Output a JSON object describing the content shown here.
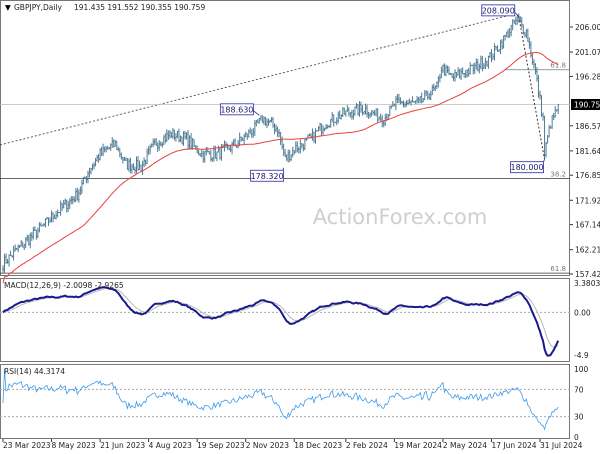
{
  "header": {
    "symbol": "GBPJPY,Daily",
    "ohlc": "191.435 191.552 190.355 190.759"
  },
  "watermark": "ActionForex.com",
  "colors": {
    "bars": "#4f7b95",
    "ma": "#e8423f",
    "macd": "#1a1a8c",
    "signal": "#b8b8b8",
    "rsi": "#3d9cf0",
    "label_box": "#2a2aa0"
  },
  "chart_data": [
    {
      "type": "ohlc",
      "title": "GBPJPY,Daily",
      "ylim": [
        157.425,
        206.0
      ],
      "y_ticks": [
        "206.000",
        "201.070",
        "196.285",
        "186.570",
        "181.640",
        "176.855",
        "171.925",
        "167.140",
        "162.210",
        "157.425"
      ],
      "x_ticks": [
        {
          "label": "23 Mar 2023",
          "date": "2023-03-23"
        },
        {
          "label": "8 May 2023",
          "date": "2023-05-08"
        },
        {
          "label": "21 Jun 2023",
          "date": "2023-06-21"
        },
        {
          "label": "4 Aug 2023",
          "date": "2023-08-04"
        },
        {
          "label": "19 Sep 2023",
          "date": "2023-09-19"
        },
        {
          "label": "2 Nov 2023",
          "date": "2023-11-02"
        },
        {
          "label": "18 Dec 2023",
          "date": "2023-12-18"
        },
        {
          "label": "2 Feb 2024",
          "date": "2024-02-02"
        },
        {
          "label": "19 Mar 2024",
          "date": "2024-03-19"
        },
        {
          "label": "2 May 2024",
          "date": "2024-05-02"
        },
        {
          "label": "17 Jun 2024",
          "date": "2024-06-17"
        },
        {
          "label": "31 Jul 2024",
          "date": "2024-07-31"
        }
      ],
      "current_price": "190.759",
      "close_path": [
        [
          "2023-03-23",
          159.5
        ],
        [
          "2023-04-10",
          163
        ],
        [
          "2023-05-01",
          167
        ],
        [
          "2023-05-15",
          170
        ],
        [
          "2023-05-31",
          173
        ],
        [
          "2023-06-12",
          178
        ],
        [
          "2023-06-21",
          181
        ],
        [
          "2023-07-05",
          183
        ],
        [
          "2023-07-14",
          179
        ],
        [
          "2023-07-28",
          178.5
        ],
        [
          "2023-08-10",
          183
        ],
        [
          "2023-08-25",
          185
        ],
        [
          "2023-09-08",
          184
        ],
        [
          "2023-09-22",
          181
        ],
        [
          "2023-10-06",
          181
        ],
        [
          "2023-10-25",
          183
        ],
        [
          "2023-11-10",
          186
        ],
        [
          "2023-11-17",
          188
        ],
        [
          "2023-12-01",
          186
        ],
        [
          "2023-12-08",
          180
        ],
        [
          "2023-12-18",
          182
        ],
        [
          "2024-01-02",
          184
        ],
        [
          "2024-01-15",
          187
        ],
        [
          "2024-02-01",
          189
        ],
        [
          "2024-02-20",
          190
        ],
        [
          "2024-03-08",
          188
        ],
        [
          "2024-03-20",
          191
        ],
        [
          "2024-04-10",
          191
        ],
        [
          "2024-04-26",
          194
        ],
        [
          "2024-05-01",
          198
        ],
        [
          "2024-05-10",
          196
        ],
        [
          "2024-05-31",
          198
        ],
        [
          "2024-06-14",
          200
        ],
        [
          "2024-06-28",
          204
        ],
        [
          "2024-07-10",
          207.5
        ],
        [
          "2024-07-18",
          205
        ],
        [
          "2024-07-26",
          197
        ],
        [
          "2024-08-02",
          188
        ],
        [
          "2024-08-05",
          181
        ],
        [
          "2024-08-09",
          187
        ],
        [
          "2024-08-14",
          189
        ],
        [
          "2024-08-16",
          190.759
        ]
      ],
      "annotations": [
        {
          "text": "208.090",
          "date": "2024-07-11",
          "price": 208.09
        },
        {
          "text": "188.630",
          "date": "2023-11-15",
          "price": 188.63
        },
        {
          "text": "178.320",
          "date": "2023-12-07",
          "price": 178.32
        },
        {
          "text": "180.000",
          "date": "2024-08-05",
          "price": 180.0
        }
      ],
      "fib_levels": [
        {
          "label": "61.8",
          "price": 197.6
        },
        {
          "label": "38.2",
          "price": 176.2
        },
        {
          "label": "61.8",
          "price": 157.6
        }
      ]
    },
    {
      "type": "line",
      "title": "MACD(12,26,9) -2.0098 -2.9265",
      "y_ticks": [
        "3.3803",
        "0.00",
        "-4.9"
      ],
      "ylim": [
        -4.9,
        3.3803
      ]
    },
    {
      "type": "line",
      "title": "RSI(14) 44.3174",
      "y_ticks": [
        "100",
        "70",
        "30",
        "0"
      ],
      "ylim": [
        0,
        100
      ]
    }
  ]
}
